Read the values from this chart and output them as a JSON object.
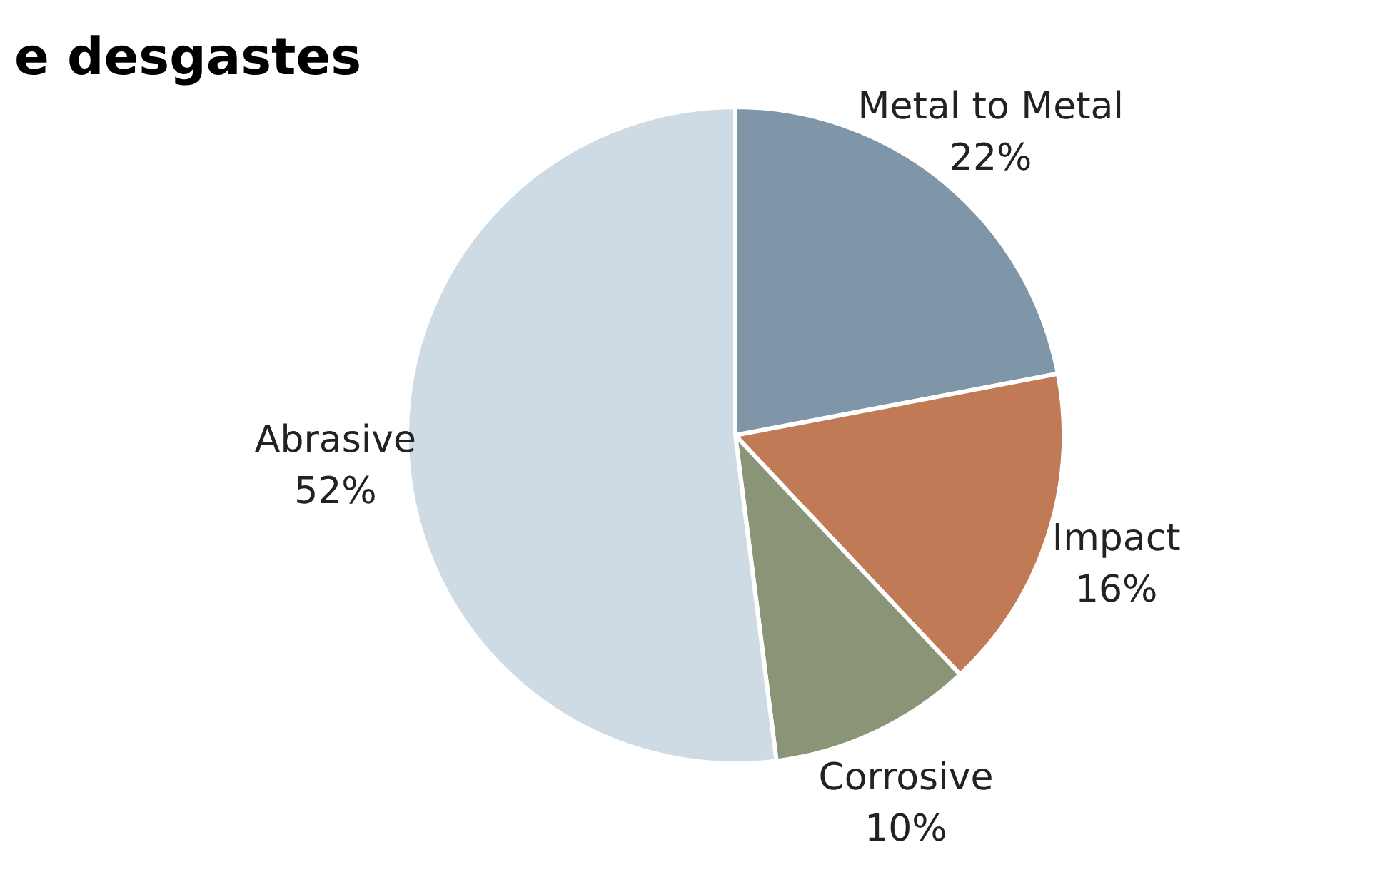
{
  "chart_data": {
    "type": "pie",
    "title": "e desgastes",
    "categories": [
      "Metal to Metal",
      "Impact",
      "Corrosive",
      "Abrasive"
    ],
    "values": [
      22,
      16,
      10,
      52
    ],
    "colors": [
      "#7f95a8",
      "#c07a56",
      "#8a9577",
      "#cfdbe4"
    ],
    "value_labels": [
      "22%",
      "16%",
      "10%",
      "52%"
    ]
  }
}
